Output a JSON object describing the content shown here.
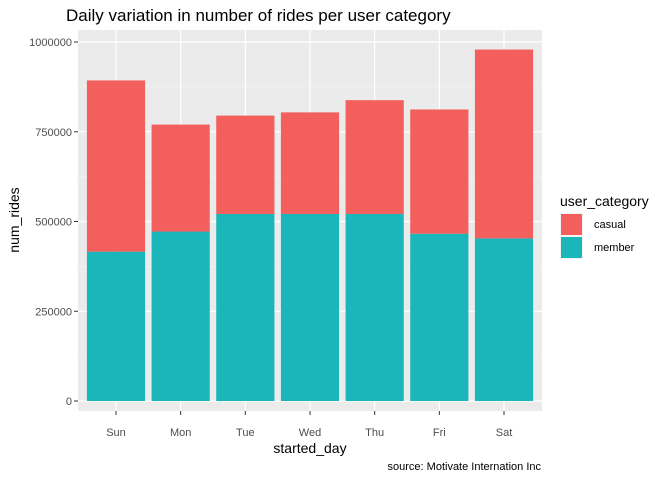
{
  "chart_data": {
    "type": "bar",
    "stacked": true,
    "title": "Daily variation in number of rides per user category",
    "xlabel": "started_day",
    "ylabel": "num_rides",
    "caption": "source: Motivate Internation Inc",
    "categories": [
      "Sun",
      "Mon",
      "Tue",
      "Wed",
      "Thu",
      "Fri",
      "Sat"
    ],
    "series": [
      {
        "name": "member",
        "color": "#1ab6b9",
        "values": [
          416000,
          472000,
          521000,
          521000,
          521000,
          466000,
          453000
        ]
      },
      {
        "name": "casual",
        "color": "#f35f5c",
        "values": [
          477000,
          298000,
          274000,
          283000,
          317000,
          346000,
          526000
        ]
      }
    ],
    "ylim": [
      0,
      1000000
    ],
    "yticks": [
      0,
      250000,
      500000,
      750000,
      1000000
    ],
    "ytick_labels": [
      "0",
      "250000",
      "500000",
      "750000",
      "1000000"
    ],
    "legend": {
      "title": "user_category",
      "position": "right",
      "entries": [
        {
          "label": "casual",
          "color": "#f35f5c"
        },
        {
          "label": "member",
          "color": "#1ab6b9"
        }
      ]
    },
    "grid": true,
    "panel_background": "#ebebeb"
  }
}
